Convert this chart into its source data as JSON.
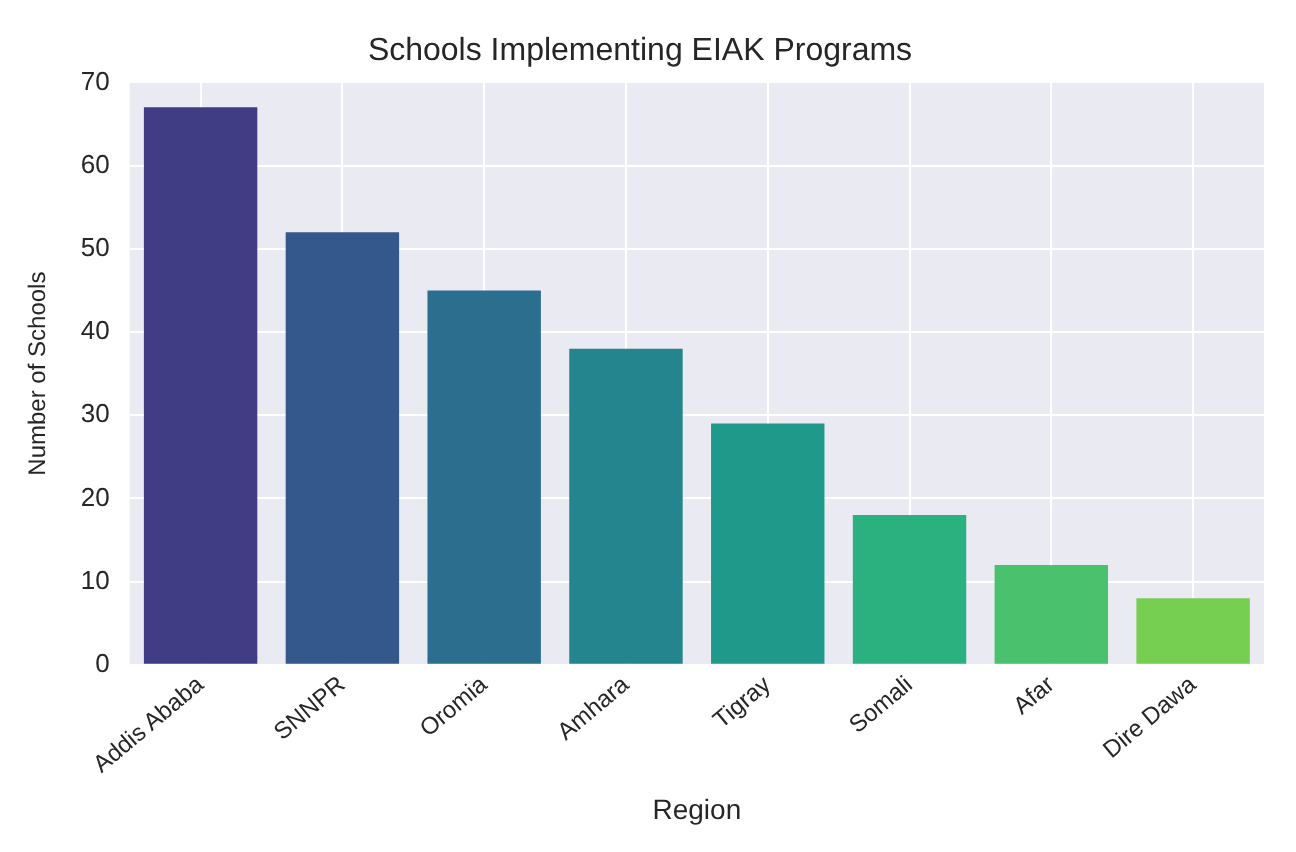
{
  "chart_data": {
    "type": "bar",
    "title": "Schools Implementing EIAK Programs",
    "xlabel": "Region",
    "ylabel": "Number of Schools",
    "categories": [
      "Addis Ababa",
      "SNNPR",
      "Oromia",
      "Amhara",
      "Tigray",
      "Somali",
      "Afar",
      "Dire Dawa"
    ],
    "values": [
      67,
      52,
      45,
      38,
      29,
      18,
      12,
      8
    ],
    "colors": [
      "#413d84",
      "#34578c",
      "#2b6e8e",
      "#25858e",
      "#1f998a",
      "#2bb07f",
      "#4ac16d",
      "#76cf50"
    ],
    "ylim": [
      0,
      70
    ],
    "yticks": [
      0,
      10,
      20,
      30,
      40,
      50,
      60,
      70
    ],
    "grid": true
  }
}
